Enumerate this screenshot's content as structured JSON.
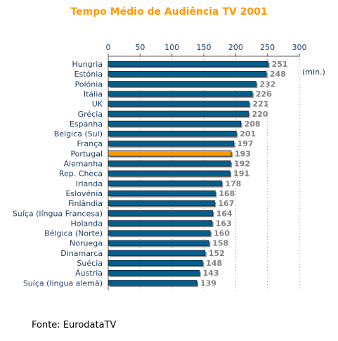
{
  "chart_data": {
    "type": "bar",
    "orientation": "horizontal",
    "title": "Tempo Médio de Audiência TV 2001",
    "unit_label": "(min.)",
    "xlim": [
      0,
      300
    ],
    "xticks": [
      0,
      50,
      100,
      150,
      200,
      250,
      300
    ],
    "grid": "vertical dashed",
    "categories": [
      "Hungria",
      "Estónia",
      "Polónia",
      "Itália",
      "UK",
      "Grécia",
      "Espanha",
      "Belgica (Sul)",
      "França",
      "Portugal",
      "Alemanha",
      "Rep. Checa",
      "Irlanda",
      "Eslovénia",
      "Finlândia",
      "Suíça (língua Francesa)",
      "Holanda",
      "Bélgica (Norte)",
      "Noruega",
      "Dinamarca",
      "Suécia",
      "Áustria",
      "Suíça (lingua alemã)"
    ],
    "values": [
      251,
      248,
      232,
      226,
      221,
      220,
      208,
      201,
      197,
      193,
      192,
      191,
      178,
      168,
      167,
      164,
      163,
      160,
      158,
      152,
      148,
      143,
      139
    ],
    "highlight": "Portugal",
    "colors": {
      "bar": "#005f8c",
      "highlight": "#ff9900",
      "value_label": "#808080",
      "tick_label": "#1f3b5c",
      "title": "#ff9900"
    }
  },
  "footer": {
    "source": "Fonte: EurodataTV"
  }
}
